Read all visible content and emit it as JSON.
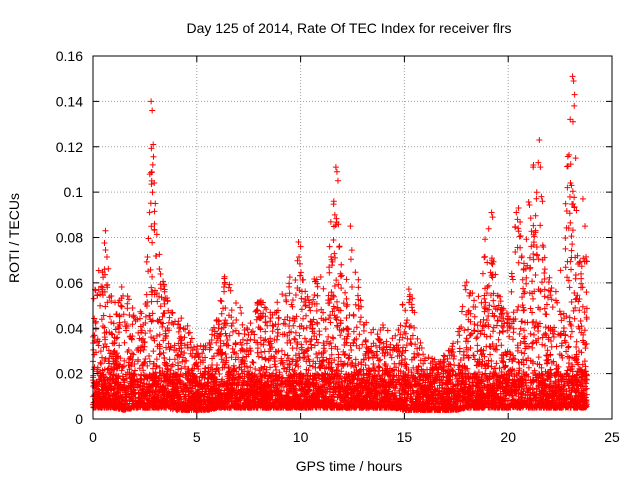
{
  "chart_data": {
    "type": "scatter",
    "title": "Day 125 of 2014, Rate Of TEC Index for receiver flrs",
    "xlabel": "GPS time / hours",
    "ylabel": "ROTI / TECUs",
    "xlim": [
      0,
      25
    ],
    "ylim": [
      0,
      0.16
    ],
    "xticks": [
      0,
      5,
      10,
      15,
      20,
      25
    ],
    "xtick_labels": [
      "0",
      "5",
      "10",
      "15",
      "20",
      "25"
    ],
    "yticks": [
      0,
      0.02,
      0.04,
      0.06,
      0.08,
      0.1,
      0.12,
      0.14,
      0.16
    ],
    "ytick_labels": [
      "0",
      "0.02",
      "0.04",
      "0.06",
      "0.08",
      "0.1",
      "0.12",
      "0.14",
      "0.16"
    ],
    "grid": true,
    "marker": "+",
    "color": "#ff0000",
    "data_range_x": [
      0,
      23.8
    ],
    "envelope": {
      "x": [
        0.0,
        0.3,
        0.6,
        1.0,
        1.5,
        2.0,
        2.5,
        2.8,
        3.1,
        3.5,
        4.0,
        4.5,
        5.0,
        5.5,
        6.0,
        6.4,
        7.0,
        7.5,
        8.0,
        8.5,
        9.0,
        9.5,
        9.9,
        10.3,
        10.8,
        11.2,
        11.7,
        12.1,
        12.5,
        13.0,
        13.5,
        14.0,
        14.5,
        15.0,
        15.3,
        15.6,
        16.0,
        16.5,
        17.0,
        17.5,
        18.0,
        18.5,
        19.0,
        19.3,
        19.7,
        20.0,
        20.4,
        20.8,
        21.2,
        21.5,
        21.8,
        22.2,
        22.6,
        23.0,
        23.2,
        23.5,
        23.8
      ],
      "ymax": [
        0.055,
        0.068,
        0.083,
        0.05,
        0.063,
        0.05,
        0.048,
        0.14,
        0.08,
        0.058,
        0.045,
        0.044,
        0.032,
        0.035,
        0.045,
        0.068,
        0.05,
        0.045,
        0.053,
        0.049,
        0.053,
        0.065,
        0.077,
        0.055,
        0.065,
        0.062,
        0.111,
        0.057,
        0.085,
        0.045,
        0.04,
        0.042,
        0.035,
        0.059,
        0.061,
        0.04,
        0.028,
        0.027,
        0.03,
        0.035,
        0.065,
        0.05,
        0.09,
        0.07,
        0.05,
        0.048,
        0.093,
        0.082,
        0.123,
        0.098,
        0.068,
        0.06,
        0.068,
        0.151,
        0.095,
        0.085,
        0.07
      ],
      "ymin": [
        0.005,
        0.005,
        0.005,
        0.005,
        0.004,
        0.005,
        0.005,
        0.005,
        0.005,
        0.005,
        0.004,
        0.004,
        0.004,
        0.004,
        0.005,
        0.005,
        0.005,
        0.005,
        0.005,
        0.005,
        0.005,
        0.005,
        0.005,
        0.005,
        0.005,
        0.005,
        0.005,
        0.005,
        0.005,
        0.005,
        0.005,
        0.005,
        0.005,
        0.004,
        0.004,
        0.004,
        0.004,
        0.004,
        0.004,
        0.004,
        0.005,
        0.005,
        0.005,
        0.005,
        0.005,
        0.005,
        0.005,
        0.005,
        0.005,
        0.005,
        0.005,
        0.005,
        0.005,
        0.005,
        0.005,
        0.005,
        0.005
      ]
    },
    "peaks": [
      {
        "x": 2.8,
        "y": 0.14
      },
      {
        "x": 2.85,
        "y": 0.136
      },
      {
        "x": 2.9,
        "y": 0.121
      },
      {
        "x": 2.88,
        "y": 0.112
      },
      {
        "x": 2.95,
        "y": 0.104
      },
      {
        "x": 3.0,
        "y": 0.095
      },
      {
        "x": 11.7,
        "y": 0.111
      },
      {
        "x": 11.75,
        "y": 0.109
      },
      {
        "x": 11.8,
        "y": 0.105
      },
      {
        "x": 11.6,
        "y": 0.096
      },
      {
        "x": 11.65,
        "y": 0.09
      },
      {
        "x": 21.5,
        "y": 0.123
      },
      {
        "x": 21.45,
        "y": 0.113
      },
      {
        "x": 21.55,
        "y": 0.111
      },
      {
        "x": 21.6,
        "y": 0.098
      },
      {
        "x": 21.65,
        "y": 0.096
      },
      {
        "x": 23.1,
        "y": 0.151
      },
      {
        "x": 23.15,
        "y": 0.149
      },
      {
        "x": 23.2,
        "y": 0.143
      },
      {
        "x": 23.18,
        "y": 0.138
      },
      {
        "x": 23.12,
        "y": 0.131
      },
      {
        "x": 23.25,
        "y": 0.115
      },
      {
        "x": 23.0,
        "y": 0.104
      },
      {
        "x": 23.05,
        "y": 0.103
      },
      {
        "x": 9.9,
        "y": 0.078
      },
      {
        "x": 10.0,
        "y": 0.076
      },
      {
        "x": 19.2,
        "y": 0.091
      },
      {
        "x": 19.25,
        "y": 0.089
      },
      {
        "x": 20.5,
        "y": 0.093
      },
      {
        "x": 20.45,
        "y": 0.088
      },
      {
        "x": 23.6,
        "y": 0.097
      },
      {
        "x": 23.7,
        "y": 0.085
      },
      {
        "x": 0.6,
        "y": 0.083
      },
      {
        "x": 12.4,
        "y": 0.085
      }
    ]
  }
}
